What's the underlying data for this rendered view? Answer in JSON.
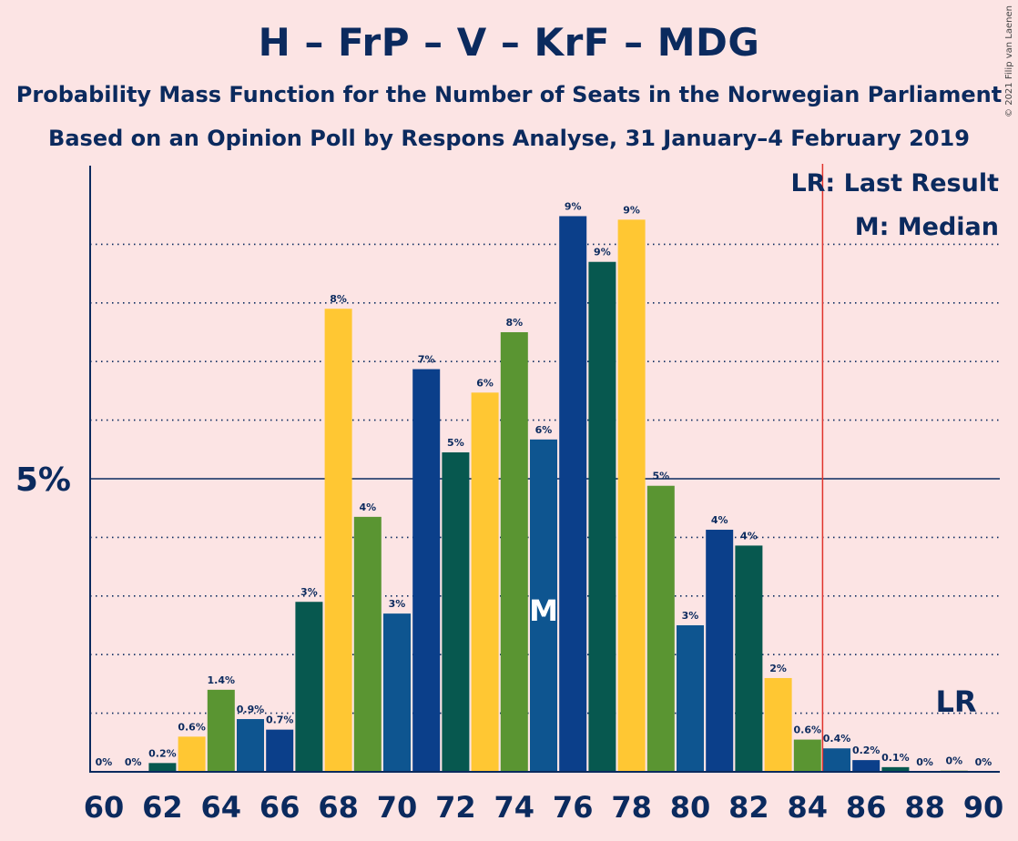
{
  "title": "H – FrP – V – KrF – MDG",
  "subtitle": "Probability Mass Function for the Number of Seats in the Norwegian Parliament",
  "subtitle2": "Based on an Opinion Poll by Respons Analyse, 31 January–4 February 2019",
  "copyright": "© 2021 Filip van Laenen",
  "legend": {
    "lr": "LR: Last Result",
    "m": "M: Median"
  },
  "median_marker": "M",
  "last_result_marker": "LR",
  "colors": {
    "background": "#FCE4E4",
    "text": "#0B2A5E",
    "lr_line": "#E0322C",
    "series": [
      "#0B3F8A",
      "#07584F",
      "#FFC733",
      "#5A9532",
      "#0E5590"
    ]
  },
  "chart_data": {
    "type": "bar",
    "xlabel": "",
    "ylabel": "",
    "ylim": [
      0,
      10.3
    ],
    "ytick_label": "5%",
    "ytick_value": 5,
    "grid_dotted": [
      1,
      2,
      3,
      4,
      6,
      7,
      8,
      9
    ],
    "x_ticks": [
      "60",
      "62",
      "64",
      "66",
      "68",
      "70",
      "72",
      "74",
      "76",
      "78",
      "80",
      "82",
      "84",
      "86",
      "88",
      "90"
    ],
    "median": 75,
    "last_result": 85,
    "bars": [
      {
        "seats": 60,
        "value": 0,
        "label": "0%",
        "color": "#0B3F8A"
      },
      {
        "seats": 61,
        "value": 0,
        "label": "0%",
        "color": "#0B3F8A"
      },
      {
        "seats": 62,
        "value": 0.15,
        "label": "0.2%",
        "color": "#07584F"
      },
      {
        "seats": 63,
        "value": 0.6,
        "label": "0.6%",
        "color": "#FFC733"
      },
      {
        "seats": 64,
        "value": 1.4,
        "label": "1.4%",
        "color": "#5A9532"
      },
      {
        "seats": 65,
        "value": 0.9,
        "label": "0.9%",
        "color": "#0E5590"
      },
      {
        "seats": 66,
        "value": 0.72,
        "label": "0.7%",
        "color": "#0B3F8A"
      },
      {
        "seats": 67,
        "value": 2.9,
        "label": "3%",
        "color": "#07584F"
      },
      {
        "seats": 68,
        "value": 7.9,
        "label": "8%",
        "color": "#FFC733"
      },
      {
        "seats": 69,
        "value": 4.35,
        "label": "4%",
        "color": "#5A9532"
      },
      {
        "seats": 70,
        "value": 2.7,
        "label": "3%",
        "color": "#0E5590"
      },
      {
        "seats": 71,
        "value": 6.87,
        "label": "7%",
        "color": "#0B3F8A"
      },
      {
        "seats": 72,
        "value": 5.45,
        "label": "5%",
        "color": "#07584F"
      },
      {
        "seats": 73,
        "value": 6.47,
        "label": "6%",
        "color": "#FFC733"
      },
      {
        "seats": 74,
        "value": 7.5,
        "label": "8%",
        "color": "#5A9532"
      },
      {
        "seats": 75,
        "value": 5.67,
        "label": "6%",
        "color": "#0E5590"
      },
      {
        "seats": 76,
        "value": 9.48,
        "label": "9%",
        "color": "#0B3F8A"
      },
      {
        "seats": 77,
        "value": 8.7,
        "label": "9%",
        "color": "#07584F"
      },
      {
        "seats": 78,
        "value": 9.42,
        "label": "9%",
        "color": "#FFC733"
      },
      {
        "seats": 79,
        "value": 4.88,
        "label": "5%",
        "color": "#5A9532"
      },
      {
        "seats": 80,
        "value": 2.5,
        "label": "3%",
        "color": "#0E5590"
      },
      {
        "seats": 81,
        "value": 4.13,
        "label": "4%",
        "color": "#0B3F8A"
      },
      {
        "seats": 82,
        "value": 3.86,
        "label": "4%",
        "color": "#07584F"
      },
      {
        "seats": 83,
        "value": 1.6,
        "label": "2%",
        "color": "#FFC733"
      },
      {
        "seats": 84,
        "value": 0.55,
        "label": "0.6%",
        "color": "#5A9532"
      },
      {
        "seats": 85,
        "value": 0.4,
        "label": "0.4%",
        "color": "#0E5590"
      },
      {
        "seats": 86,
        "value": 0.2,
        "label": "0.2%",
        "color": "#0B3F8A"
      },
      {
        "seats": 87,
        "value": 0.08,
        "label": "0.1%",
        "color": "#07584F"
      },
      {
        "seats": 88,
        "value": 0,
        "label": "0%",
        "color": "#FFC733"
      },
      {
        "seats": 89,
        "value": 0.02,
        "label": "0%",
        "color": "#5A9532"
      },
      {
        "seats": 90,
        "value": 0,
        "label": "0%",
        "color": "#0E5590"
      }
    ]
  }
}
